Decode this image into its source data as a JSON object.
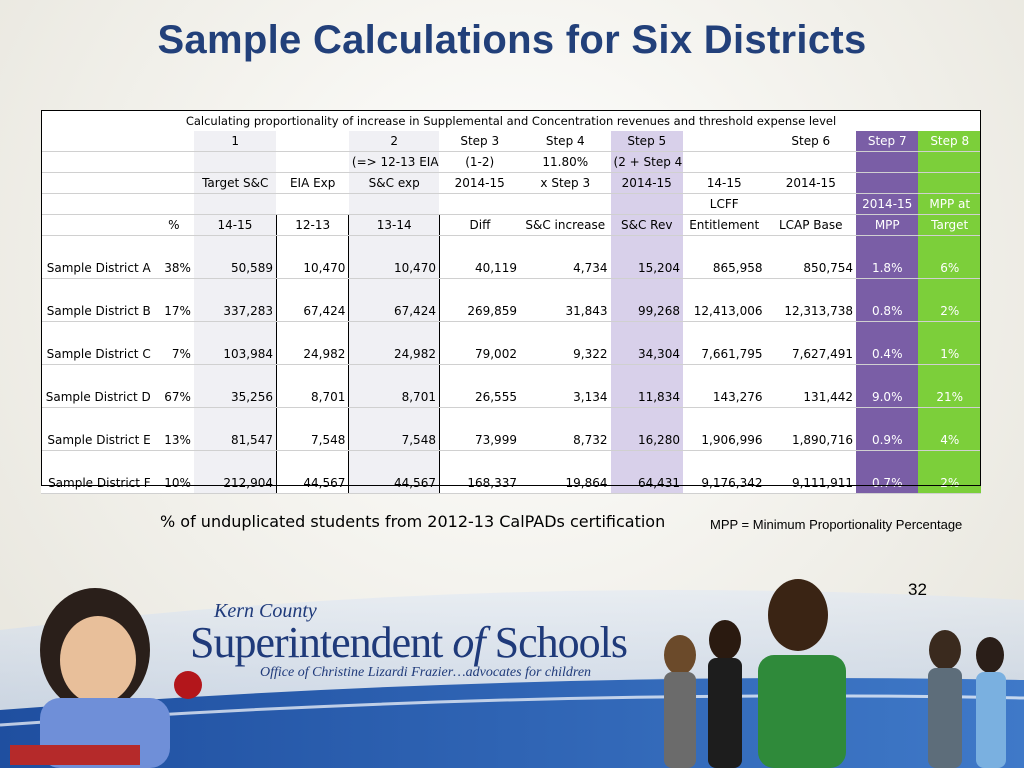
{
  "title": "Sample Calculations for Six Districts",
  "table": {
    "caption": "Calculating proportionality of increase in Supplemental and Concentration revenues and threshold expense level",
    "header_rows": [
      [
        "",
        "",
        "1",
        "",
        "2",
        "Step 3",
        "Step 4",
        "Step 5",
        "",
        "Step 6",
        "Step 7",
        "Step 8"
      ],
      [
        "",
        "",
        "",
        "",
        "(=> 12-13 EIA)",
        "(1-2)",
        "11.80%",
        "(2 + Step 4)",
        "",
        "",
        "",
        ""
      ],
      [
        "",
        "",
        "Target S&C",
        "EIA Exp",
        "S&C exp",
        "2014-15",
        "x Step 3",
        "2014-15",
        "14-15",
        "2014-15",
        "",
        ""
      ],
      [
        "",
        "",
        "",
        "",
        "",
        "",
        "",
        "",
        "LCFF",
        "",
        "2014-15",
        "MPP at"
      ],
      [
        "",
        "%",
        "14-15",
        "12-13",
        "13-14",
        "Diff",
        "S&C increase",
        "S&C Rev",
        "Entitlement",
        "LCAP Base",
        "MPP",
        "Target"
      ]
    ],
    "rows": [
      [
        "Sample District A",
        "38%",
        "50,589",
        "10,470",
        "10,470",
        "40,119",
        "4,734",
        "15,204",
        "865,958",
        "850,754",
        "1.8%",
        "6%"
      ],
      [
        "Sample District B",
        "17%",
        "337,283",
        "67,424",
        "67,424",
        "269,859",
        "31,843",
        "99,268",
        "12,413,006",
        "12,313,738",
        "0.8%",
        "2%"
      ],
      [
        "Sample District C",
        "7%",
        "103,984",
        "24,982",
        "24,982",
        "79,002",
        "9,322",
        "34,304",
        "7,661,795",
        "7,627,491",
        "0.4%",
        "1%"
      ],
      [
        "Sample District D",
        "67%",
        "35,256",
        "8,701",
        "8,701",
        "26,555",
        "3,134",
        "11,834",
        "143,276",
        "131,442",
        "9.0%",
        "21%"
      ],
      [
        "Sample District E",
        "13%",
        "81,547",
        "7,548",
        "7,548",
        "73,999",
        "8,732",
        "16,280",
        "1,906,996",
        "1,890,716",
        "0.9%",
        "4%"
      ],
      [
        "Sample District F",
        "10%",
        "212,904",
        "44,567",
        "44,567",
        "168,337",
        "19,864",
        "64,431",
        "9,176,342",
        "9,111,911",
        "0.7%",
        "2%"
      ]
    ]
  },
  "footnote": "% of unduplicated students from 2012-13 CalPADs certification",
  "mpp_note": "MPP = Minimum Proportionality Percentage",
  "page_number": "32",
  "logo": {
    "county": "Kern County",
    "superintendent": "Superintendent",
    "of": "of",
    "schools": "Schools",
    "office": "Office of Christine Lizardi Frazier…advocates for children"
  },
  "colors": {
    "title": "#22407a",
    "step5_col": "#d8d0ea",
    "step7_col": "#7a5ea6",
    "step8_col": "#7ccf3a",
    "banner": "#2d5aa8"
  }
}
